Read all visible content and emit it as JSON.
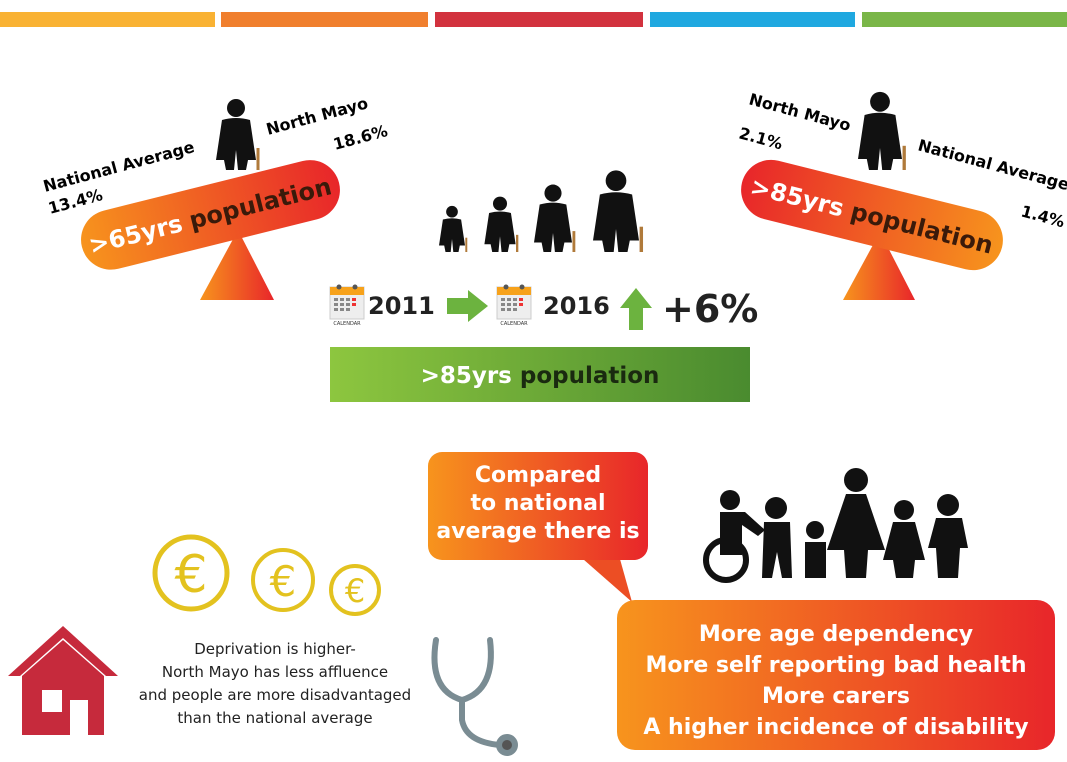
{
  "left_seesaw": {
    "label_prefix": ">65yrs",
    "label_suffix": "population",
    "national_label": "National Average",
    "national_value": "13.4%",
    "local_label": "North Mayo",
    "local_value": "18.6%"
  },
  "right_seesaw": {
    "label_prefix": ">85yrs",
    "label_suffix": "population",
    "national_label": "National Average",
    "national_value": "1.4%",
    "local_label": "North Mayo",
    "local_value": "2.1%"
  },
  "trend": {
    "calendar_label": "CALENDAR",
    "year_start": "2011",
    "year_end": "2016",
    "change": "+6%",
    "banner_prefix": ">85yrs",
    "banner_suffix": "population"
  },
  "callout": {
    "lines": [
      "Compared",
      "to national",
      "average there is"
    ]
  },
  "findings": [
    "More age dependency",
    "More self reporting bad health",
    "More carers",
    "A higher incidence of disability"
  ],
  "deprivation": {
    "currency_symbol": "€",
    "lines": [
      "Deprivation is higher-",
      "North Mayo has less affluence",
      "and people are more disadvantaged",
      "than the national average"
    ]
  }
}
